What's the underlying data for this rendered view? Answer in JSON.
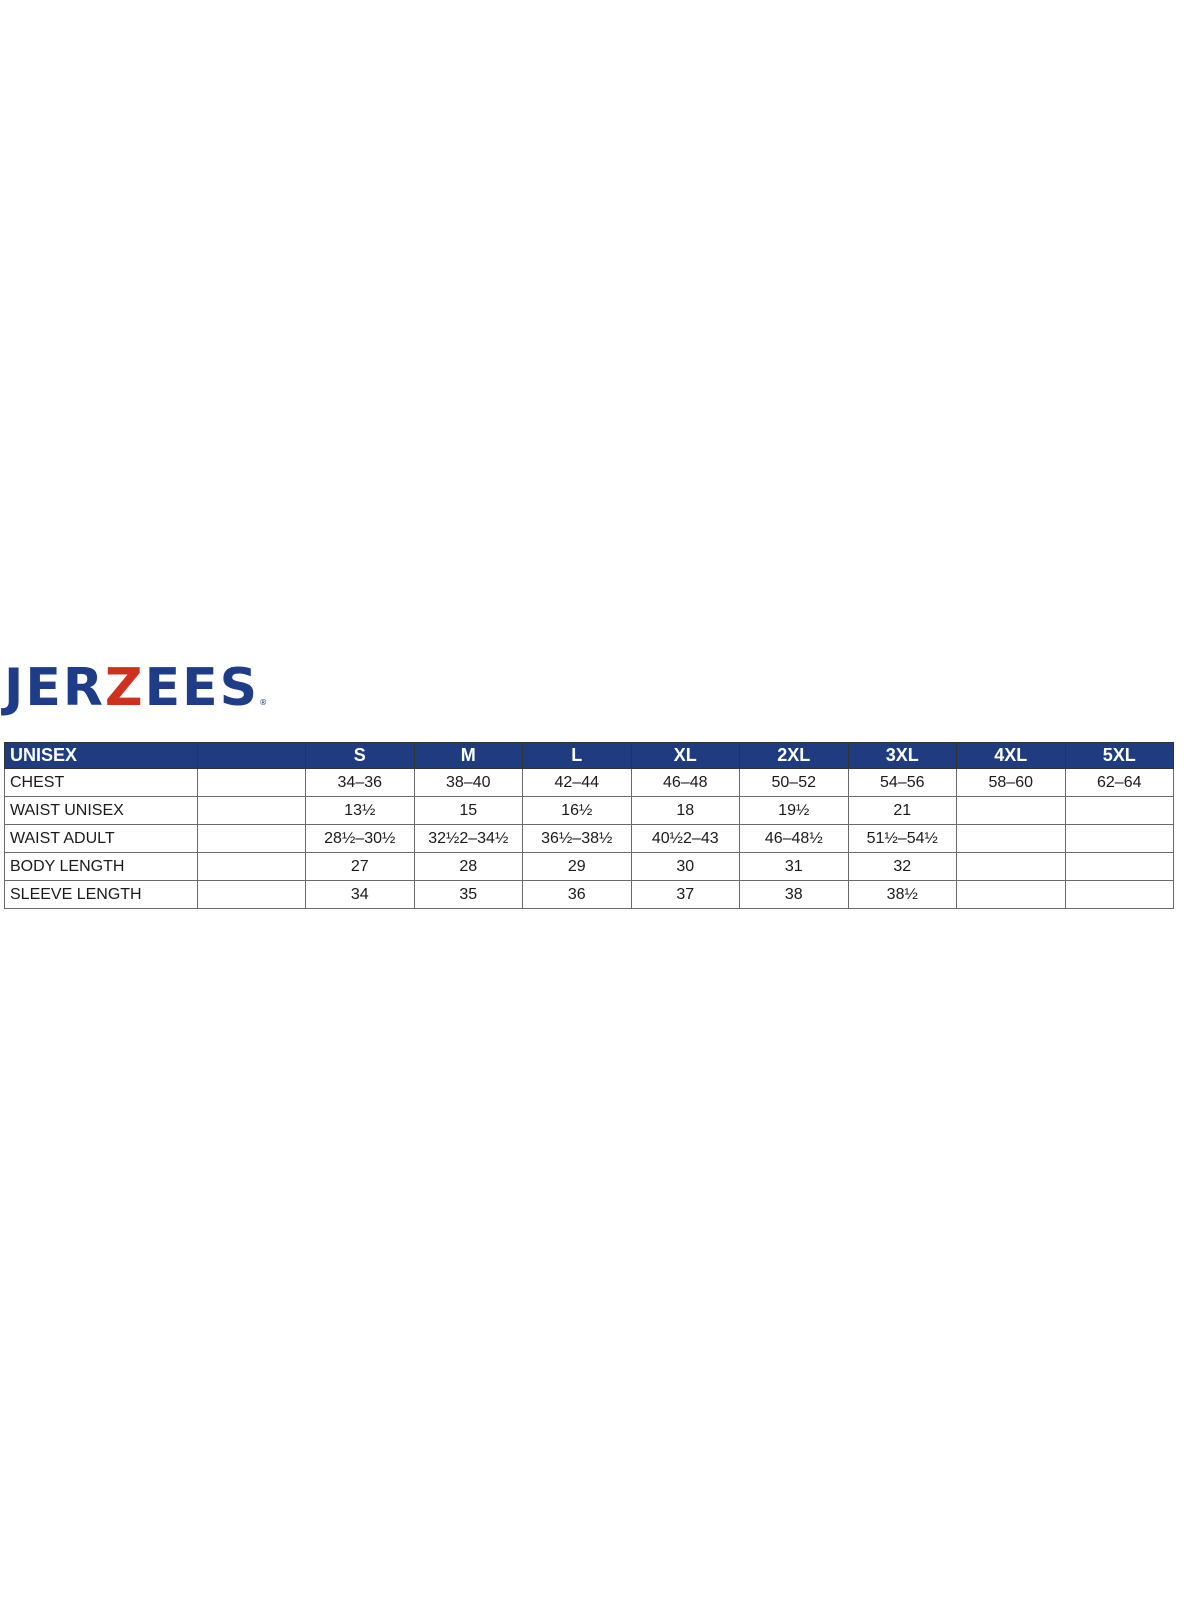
{
  "brand": {
    "logo_text_part1": "JER",
    "logo_text_z": "Z",
    "logo_text_part2": "EES",
    "registered": "®",
    "colors": {
      "blue": "#1f3c88",
      "red": "#d0311f"
    }
  },
  "table": {
    "header": [
      "UNISEX",
      "",
      "S",
      "M",
      "L",
      "XL",
      "2XL",
      "3XL",
      "4XL",
      "5XL"
    ],
    "rows": [
      {
        "label": "CHEST",
        "values": [
          "",
          "34–36",
          "38–40",
          "42–44",
          "46–48",
          "50–52",
          "54–56",
          "58–60",
          "62–64"
        ]
      },
      {
        "label": "WAIST UNISEX",
        "values": [
          "",
          "13½",
          "15",
          "16½",
          "18",
          "19½",
          "21",
          "",
          ""
        ]
      },
      {
        "label": "WAIST ADULT",
        "values": [
          "",
          "28½–30½",
          "32½2–34½",
          "36½–38½",
          "40½2–43",
          "46–48½",
          "51½–54½",
          "",
          ""
        ]
      },
      {
        "label": "BODY LENGTH",
        "values": [
          "",
          "27",
          "28",
          "29",
          "30",
          "31",
          "32",
          "",
          ""
        ]
      },
      {
        "label": "SLEEVE LENGTH",
        "values": [
          "",
          "34",
          "35",
          "36",
          "37",
          "38",
          "38½",
          "",
          ""
        ]
      }
    ]
  }
}
